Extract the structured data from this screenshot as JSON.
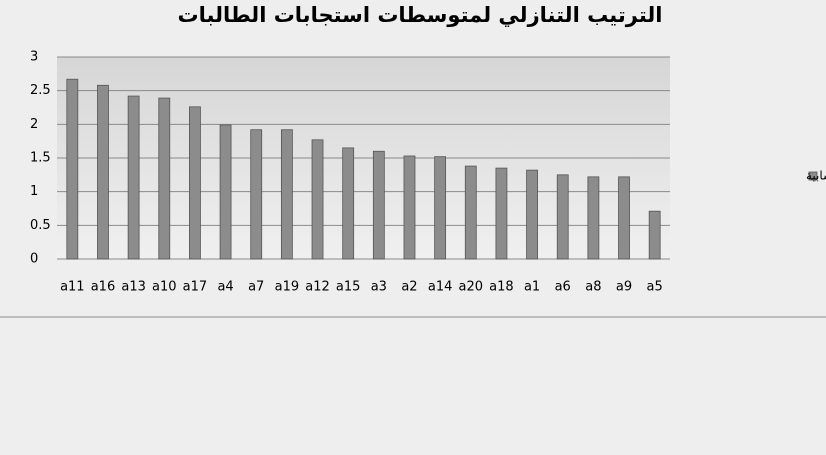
{
  "chart_data": {
    "type": "bar",
    "title": "الترتيب التنازلي لمتوسطات استجابات الطالبات",
    "categories": [
      "a11",
      "a16",
      "a13",
      "a10",
      "a17",
      "a4",
      "a7",
      "a19",
      "a12",
      "a15",
      "a3",
      "a2",
      "a14",
      "a20",
      "a18",
      "a1",
      "a6",
      "a8",
      "a9",
      "a5"
    ],
    "series": [
      {
        "name": "المتوسطات الحسابية",
        "color": "#8c8c8c",
        "values": [
          2.67,
          2.58,
          2.42,
          2.39,
          2.26,
          1.99,
          1.92,
          1.92,
          1.77,
          1.65,
          1.6,
          1.53,
          1.52,
          1.38,
          1.35,
          1.32,
          1.25,
          1.22,
          1.22,
          0.71
        ]
      }
    ],
    "ylim": [
      0,
      3
    ],
    "yticks": [
      0,
      0.5,
      1,
      1.5,
      2,
      2.5,
      3
    ],
    "grid": true,
    "legend": "right"
  }
}
